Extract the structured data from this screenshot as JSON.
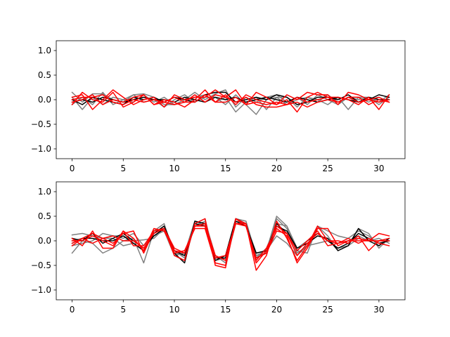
{
  "chart_data": [
    {
      "type": "line",
      "xlim": [
        -1.55,
        32.55
      ],
      "ylim": [
        -1.2,
        1.2
      ],
      "xticks": [
        0,
        5,
        10,
        15,
        20,
        25,
        30
      ],
      "yticks": [
        -1.0,
        -0.5,
        0.0,
        0.5,
        1.0
      ],
      "ytick_labels": [
        "−1.0",
        "−0.5",
        "0.0",
        "0.5",
        "1.0"
      ],
      "x": [
        0,
        1,
        2,
        3,
        4,
        5,
        6,
        7,
        8,
        9,
        10,
        11,
        12,
        13,
        14,
        15,
        16,
        17,
        18,
        19,
        20,
        21,
        22,
        23,
        24,
        25,
        26,
        27,
        28,
        29,
        30,
        31
      ],
      "series": [
        {
          "color": "#808080",
          "values": [
            0.15,
            -0.05,
            0.12,
            0.12,
            0.0,
            -0.05,
            0.1,
            0.12,
            0.05,
            -0.1,
            -0.1,
            0.0,
            0.15,
            0.0,
            0.12,
            0.2,
            -0.15,
            0.05,
            -0.05,
            0.05,
            0.1,
            -0.05,
            0.05,
            -0.1,
            0.1,
            0.0,
            -0.1,
            0.05,
            0.05,
            -0.05,
            0.05,
            -0.05
          ]
        },
        {
          "color": "#808080",
          "values": [
            -0.1,
            0.05,
            -0.1,
            0.15,
            -0.1,
            0.0,
            0.1,
            -0.05,
            0.0,
            -0.15,
            0.0,
            0.1,
            -0.05,
            0.05,
            0.05,
            -0.1,
            0.1,
            -0.1,
            -0.3,
            0.0,
            0.05,
            0.05,
            -0.15,
            0.05,
            0.0,
            -0.1,
            0.05,
            -0.2,
            0.05,
            0.05,
            -0.1,
            0.05
          ]
        },
        {
          "color": "#808080",
          "values": [
            0.05,
            -0.2,
            0.05,
            -0.1,
            0.05,
            0.0,
            -0.05,
            0.1,
            -0.05,
            0.05,
            -0.1,
            -0.05,
            0.05,
            0.1,
            -0.05,
            0.05,
            -0.25,
            -0.05,
            0.05,
            -0.2,
            0.05,
            -0.1,
            0.0,
            0.05,
            -0.05,
            0.1,
            -0.05,
            0.05,
            0.0,
            0.05,
            -0.05,
            0.1
          ]
        },
        {
          "color": "#000000",
          "values": [
            0.0,
            -0.1,
            0.05,
            0.0,
            -0.05,
            -0.1,
            0.05,
            0.0,
            0.05,
            -0.05,
            0.05,
            0.0,
            -0.05,
            0.1,
            0.15,
            0.15,
            -0.05,
            0.0,
            0.05,
            0.0,
            0.1,
            0.05,
            -0.1,
            -0.05,
            0.05,
            0.05,
            0.0,
            0.1,
            -0.05,
            0.0,
            0.1,
            0.05
          ]
        },
        {
          "color": "#000000",
          "values": [
            -0.05,
            0.0,
            -0.05,
            0.05,
            0.0,
            -0.05,
            0.0,
            0.05,
            0.0,
            0.0,
            -0.05,
            0.05,
            0.0,
            -0.05,
            0.05,
            0.0,
            0.05,
            -0.05,
            0.0,
            0.05,
            0.0,
            -0.05,
            0.05,
            0.0,
            -0.05,
            0.0,
            0.05,
            0.0,
            -0.05,
            0.05,
            0.0,
            0.0
          ]
        },
        {
          "color": "#ff0000",
          "values": [
            0.05,
            0.1,
            -0.2,
            0.0,
            0.2,
            0.05,
            -0.1,
            0.0,
            0.05,
            -0.15,
            0.1,
            0.0,
            0.05,
            0.05,
            0.2,
            0.05,
            0.2,
            -0.1,
            0.15,
            0.05,
            -0.1,
            0.1,
            0.0,
            0.15,
            0.1,
            0.1,
            -0.1,
            0.15,
            0.1,
            0.0,
            0.05,
            -0.05
          ]
        },
        {
          "color": "#ff0000",
          "values": [
            -0.1,
            0.15,
            0.0,
            -0.05,
            0.15,
            -0.15,
            -0.05,
            0.1,
            -0.1,
            0.0,
            -0.05,
            -0.15,
            0.0,
            0.2,
            -0.05,
            0.1,
            -0.1,
            0.1,
            0.0,
            -0.05,
            -0.1,
            0.0,
            -0.25,
            0.05,
            0.15,
            0.05,
            0.05,
            0.0,
            -0.1,
            0.05,
            -0.2,
            0.1
          ]
        },
        {
          "color": "#ff0000",
          "values": [
            0.0,
            0.05,
            0.05,
            0.1,
            -0.05,
            -0.1,
            0.0,
            -0.05,
            0.0,
            -0.05,
            0.05,
            -0.05,
            -0.05,
            0.1,
            -0.05,
            -0.05,
            0.05,
            -0.1,
            -0.05,
            -0.1,
            -0.05,
            -0.1,
            0.05,
            -0.05,
            0.0,
            0.05,
            -0.05,
            0.05,
            0.05,
            -0.1,
            0.0,
            -0.05
          ]
        },
        {
          "color": "#ff0000",
          "values": [
            -0.05,
            0.0,
            0.1,
            -0.1,
            0.0,
            -0.05,
            0.05,
            0.1,
            -0.1,
            -0.05,
            -0.1,
            -0.05,
            0.1,
            -0.05,
            0.1,
            0.05,
            -0.05,
            0.05,
            -0.1,
            -0.15,
            -0.15,
            -0.1,
            -0.05,
            -0.15,
            -0.05,
            0.0,
            -0.05,
            0.05,
            -0.05,
            0.0,
            -0.05,
            0.0
          ]
        }
      ]
    },
    {
      "type": "line",
      "xlim": [
        -1.55,
        32.55
      ],
      "ylim": [
        -1.2,
        1.2
      ],
      "xticks": [
        0,
        5,
        10,
        15,
        20,
        25,
        30
      ],
      "yticks": [
        -1.0,
        -0.5,
        0.0,
        0.5,
        1.0
      ],
      "ytick_labels": [
        "−1.0",
        "−0.5",
        "0.0",
        "0.5",
        "1.0"
      ],
      "x": [
        0,
        1,
        2,
        3,
        4,
        5,
        6,
        7,
        8,
        9,
        10,
        11,
        12,
        13,
        14,
        15,
        16,
        17,
        18,
        19,
        20,
        21,
        22,
        23,
        24,
        25,
        26,
        27,
        28,
        29,
        30,
        31
      ],
      "series": [
        {
          "color": "#808080",
          "values": [
            0.12,
            0.15,
            0.1,
            0.05,
            0.1,
            0.1,
            0.0,
            0.02,
            0.05,
            0.25,
            -0.25,
            -0.3,
            0.3,
            0.35,
            -0.35,
            -0.3,
            0.4,
            0.35,
            -0.25,
            -0.2,
            0.5,
            0.3,
            -0.2,
            -0.25,
            0.3,
            0.2,
            0.1,
            0.05,
            0.2,
            0.1,
            -0.1,
            0.05
          ]
        },
        {
          "color": "#808080",
          "values": [
            -0.25,
            0.0,
            -0.05,
            -0.25,
            -0.15,
            0.0,
            0.05,
            -0.45,
            0.2,
            0.35,
            -0.3,
            -0.4,
            0.35,
            0.45,
            -0.4,
            -0.35,
            0.45,
            0.4,
            -0.3,
            -0.25,
            0.45,
            0.25,
            -0.25,
            -0.1,
            0.3,
            0.1,
            -0.2,
            -0.1,
            0.25,
            0.15,
            -0.15,
            0.05
          ]
        },
        {
          "color": "#808080",
          "values": [
            0.0,
            0.05,
            0.15,
            0.05,
            0.05,
            -0.1,
            -0.05,
            -0.2,
            0.15,
            0.3,
            -0.2,
            -0.35,
            0.3,
            0.4,
            -0.3,
            -0.4,
            0.4,
            0.3,
            -0.35,
            -0.15,
            0.35,
            0.3,
            -0.15,
            0.0,
            0.15,
            0.0,
            -0.05,
            0.0,
            0.1,
            0.0,
            0.05,
            -0.05
          ]
        },
        {
          "color": "#808080",
          "values": [
            -0.1,
            -0.05,
            0.0,
            0.15,
            0.1,
            0.05,
            0.15,
            -0.1,
            0.1,
            0.2,
            -0.3,
            -0.25,
            0.4,
            0.3,
            -0.3,
            -0.45,
            0.35,
            0.35,
            -0.3,
            -0.2,
            0.1,
            -0.05,
            -0.3,
            -0.1,
            -0.05,
            0.0,
            -0.15,
            -0.1,
            0.05,
            0.0,
            0.0,
            0.0
          ]
        },
        {
          "color": "#000000",
          "values": [
            0.05,
            0.0,
            0.15,
            -0.05,
            0.05,
            0.15,
            0.0,
            -0.15,
            0.1,
            0.25,
            -0.25,
            -0.45,
            0.4,
            0.35,
            -0.4,
            -0.3,
            0.45,
            0.35,
            -0.35,
            -0.25,
            0.3,
            0.2,
            -0.15,
            -0.05,
            0.1,
            0.05,
            -0.2,
            -0.1,
            0.25,
            0.0,
            -0.1,
            0.05
          ]
        },
        {
          "color": "#000000",
          "values": [
            -0.05,
            0.05,
            0.05,
            0.0,
            0.0,
            0.1,
            -0.05,
            -0.2,
            0.15,
            0.3,
            -0.2,
            -0.3,
            0.35,
            0.3,
            -0.35,
            -0.35,
            0.4,
            0.3,
            -0.25,
            -0.2,
            0.35,
            0.15,
            -0.2,
            0.0,
            0.15,
            0.0,
            -0.15,
            -0.05,
            0.15,
            0.05,
            -0.05,
            0.0
          ]
        },
        {
          "color": "#ff0000",
          "values": [
            0.05,
            -0.1,
            0.2,
            -0.15,
            -0.15,
            0.2,
            -0.1,
            -0.1,
            0.2,
            0.25,
            -0.3,
            -0.4,
            0.35,
            0.45,
            -0.5,
            -0.55,
            0.45,
            0.35,
            -0.6,
            -0.3,
            0.4,
            0.05,
            -0.4,
            -0.1,
            0.3,
            0.0,
            0.0,
            -0.05,
            0.1,
            -0.2,
            0.0,
            0.0
          ]
        },
        {
          "color": "#ff0000",
          "values": [
            -0.1,
            0.05,
            -0.05,
            0.05,
            -0.05,
            0.15,
            0.2,
            -0.25,
            0.2,
            0.25,
            -0.25,
            -0.2,
            0.25,
            0.25,
            -0.45,
            -0.5,
            0.45,
            0.3,
            -0.4,
            -0.15,
            0.25,
            0.1,
            -0.45,
            -0.15,
            0.25,
            0.25,
            -0.1,
            0.0,
            0.0,
            0.0,
            0.15,
            0.1
          ]
        },
        {
          "color": "#ff0000",
          "values": [
            0.0,
            0.0,
            0.1,
            0.0,
            -0.1,
            0.2,
            0.05,
            -0.2,
            0.25,
            0.2,
            -0.2,
            -0.25,
            0.3,
            0.3,
            -0.35,
            -0.3,
            0.35,
            0.35,
            -0.45,
            -0.2,
            0.3,
            0.15,
            -0.2,
            0.0,
            0.2,
            -0.1,
            -0.05,
            0.05,
            -0.05,
            0.05,
            -0.05,
            -0.1
          ]
        },
        {
          "color": "#ff0000",
          "values": [
            -0.05,
            0.05,
            0.15,
            0.05,
            0.1,
            0.0,
            0.0,
            -0.15,
            0.15,
            0.25,
            -0.15,
            -0.25,
            0.3,
            0.35,
            -0.3,
            -0.4,
            0.35,
            0.3,
            -0.35,
            -0.25,
            0.2,
            0.15,
            -0.3,
            -0.05,
            0.15,
            0.0,
            -0.05,
            0.0,
            0.05,
            0.0,
            0.0,
            0.05
          ]
        }
      ]
    }
  ]
}
